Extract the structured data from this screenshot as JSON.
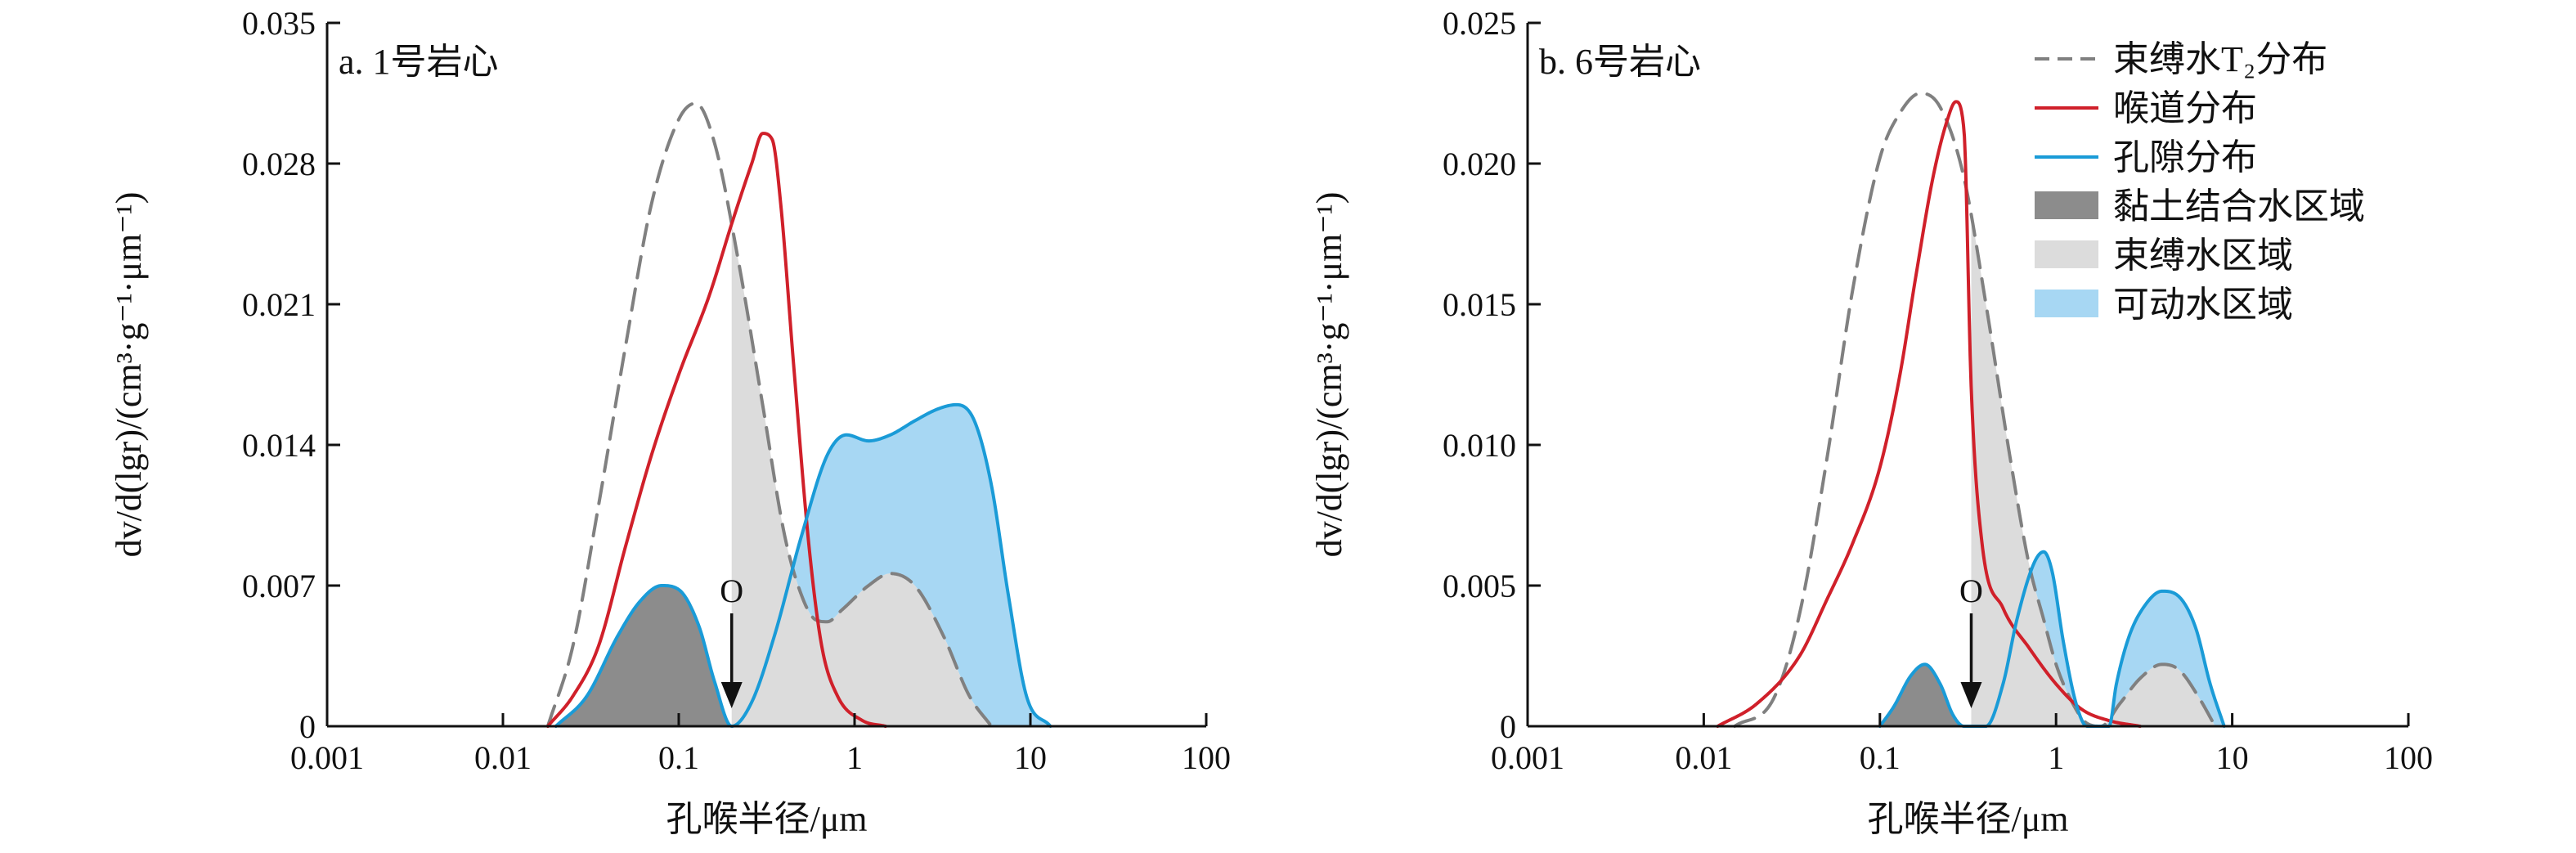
{
  "chart_data": [
    {
      "type": "area",
      "panel_label": "a. 1号岩心",
      "xlabel": "孔喉半径/μm",
      "ylabel": "dv/d(lgr)/(cm³·g⁻¹·μm⁻¹)",
      "x_scale": "log",
      "xlim": [
        0.001,
        100
      ],
      "ylim": [
        0,
        0.035
      ],
      "x_ticks": [
        "0.001",
        "0.01",
        "0.1",
        "1",
        "10",
        "100"
      ],
      "y_ticks": [
        "0",
        "0.007",
        "0.014",
        "0.021",
        "0.028",
        "0.035"
      ],
      "cutoff_marker": {
        "label": "O",
        "x": 0.2
      },
      "series": [
        {
          "name": "束缚水T₂分布",
          "style": "dashed",
          "color": "#808080",
          "points": [
            [
              0.018,
              0
            ],
            [
              0.025,
              0.004
            ],
            [
              0.035,
              0.011
            ],
            [
              0.05,
              0.019
            ],
            [
              0.07,
              0.026
            ],
            [
              0.1,
              0.0302
            ],
            [
              0.125,
              0.031
            ],
            [
              0.16,
              0.029
            ],
            [
              0.22,
              0.023
            ],
            [
              0.3,
              0.016
            ],
            [
              0.4,
              0.0095
            ],
            [
              0.5,
              0.0065
            ],
            [
              0.6,
              0.0053
            ],
            [
              0.7,
              0.0052
            ],
            [
              0.85,
              0.0058
            ],
            [
              1.2,
              0.007
            ],
            [
              1.6,
              0.0076
            ],
            [
              2.2,
              0.007
            ],
            [
              3.2,
              0.0045
            ],
            [
              4.5,
              0.0015
            ],
            [
              6,
              0
            ]
          ]
        },
        {
          "name": "喉道分布",
          "style": "solid",
          "color": "#d0202a",
          "points": [
            [
              0.018,
              0
            ],
            [
              0.025,
              0.0015
            ],
            [
              0.035,
              0.004
            ],
            [
              0.05,
              0.009
            ],
            [
              0.07,
              0.0135
            ],
            [
              0.1,
              0.0175
            ],
            [
              0.15,
              0.0215
            ],
            [
              0.2,
              0.025
            ],
            [
              0.26,
              0.028
            ],
            [
              0.3,
              0.0295
            ],
            [
              0.34,
              0.0292
            ],
            [
              0.38,
              0.026
            ],
            [
              0.45,
              0.018
            ],
            [
              0.55,
              0.009
            ],
            [
              0.65,
              0.004
            ],
            [
              0.8,
              0.0015
            ],
            [
              1.1,
              0.0003
            ],
            [
              1.5,
              0
            ]
          ]
        },
        {
          "name": "孔隙分布",
          "style": "solid",
          "color": "#1a9bd7",
          "points": [
            [
              0.02,
              0
            ],
            [
              0.03,
              0.0015
            ],
            [
              0.045,
              0.0045
            ],
            [
              0.06,
              0.0062
            ],
            [
              0.08,
              0.007
            ],
            [
              0.1,
              0.0068
            ],
            [
              0.13,
              0.005
            ],
            [
              0.16,
              0.0022
            ],
            [
              0.2,
              0
            ],
            [
              0.26,
              0.0012
            ],
            [
              0.35,
              0.0045
            ],
            [
              0.5,
              0.0095
            ],
            [
              0.7,
              0.0135
            ],
            [
              0.9,
              0.0145
            ],
            [
              1.2,
              0.0142
            ],
            [
              1.6,
              0.0145
            ],
            [
              2.2,
              0.0152
            ],
            [
              3,
              0.0158
            ],
            [
              3.8,
              0.016
            ],
            [
              4.8,
              0.0152
            ],
            [
              6,
              0.012
            ],
            [
              7.5,
              0.0065
            ],
            [
              9.5,
              0.0015
            ],
            [
              13,
              0
            ]
          ]
        }
      ],
      "regions": [
        {
          "name": "黏土结合水区域",
          "color": "#8c8c8c",
          "bounds": "孔隙分布, x ≤ 0.2"
        },
        {
          "name": "束缚水区域",
          "color": "#dcdcdc",
          "bounds": "束缚水T₂分布, x ≥ 0.2"
        },
        {
          "name": "可动水区域",
          "color": "#a7d7f3",
          "bounds": "孔隙分布 − 束缚水T₂分布"
        }
      ]
    },
    {
      "type": "area",
      "panel_label": "b. 6号岩心",
      "xlabel": "孔喉半径/μm",
      "ylabel": "dv/d(lgr)/(cm³·g⁻¹·μm⁻¹)",
      "x_scale": "log",
      "xlim": [
        0.001,
        100
      ],
      "ylim": [
        0,
        0.025
      ],
      "x_ticks": [
        "0.001",
        "0.01",
        "0.1",
        "1",
        "10",
        "100"
      ],
      "y_ticks": [
        "0",
        "0.005",
        "0.010",
        "0.015",
        "0.020",
        "0.025"
      ],
      "cutoff_marker": {
        "label": "O",
        "x": 0.33
      },
      "series": [
        {
          "name": "束缚水T₂分布",
          "style": "dashed",
          "color": "#808080",
          "points": [
            [
              0.015,
              0
            ],
            [
              0.025,
              0.001
            ],
            [
              0.035,
              0.004
            ],
            [
              0.05,
              0.0095
            ],
            [
              0.07,
              0.0155
            ],
            [
              0.1,
              0.0202
            ],
            [
              0.13,
              0.0218
            ],
            [
              0.17,
              0.0225
            ],
            [
              0.22,
              0.022
            ],
            [
              0.3,
              0.0195
            ],
            [
              0.4,
              0.015
            ],
            [
              0.55,
              0.0095
            ],
            [
              0.7,
              0.0058
            ],
            [
              0.85,
              0.0038
            ],
            [
              1,
              0.0022
            ],
            [
              1.2,
              0.001
            ],
            [
              1.5,
              0.0001
            ],
            [
              1.8,
              0
            ],
            [
              2.3,
              0.0008
            ],
            [
              3,
              0.0017
            ],
            [
              4,
              0.0022
            ],
            [
              5,
              0.002
            ],
            [
              6.5,
              0.001
            ],
            [
              8,
              0
            ]
          ]
        },
        {
          "name": "喉道分布",
          "style": "solid",
          "color": "#d0202a",
          "points": [
            [
              0.012,
              0
            ],
            [
              0.02,
              0.0008
            ],
            [
              0.035,
              0.0025
            ],
            [
              0.05,
              0.0045
            ],
            [
              0.07,
              0.0065
            ],
            [
              0.1,
              0.0092
            ],
            [
              0.13,
              0.0125
            ],
            [
              0.16,
              0.016
            ],
            [
              0.2,
              0.0195
            ],
            [
              0.24,
              0.0215
            ],
            [
              0.27,
              0.0222
            ],
            [
              0.3,
              0.0212
            ],
            [
              0.33,
              0.012
            ],
            [
              0.38,
              0.0065
            ],
            [
              0.5,
              0.0042
            ],
            [
              0.7,
              0.0028
            ],
            [
              1,
              0.0015
            ],
            [
              1.4,
              0.0006
            ],
            [
              2,
              0.0002
            ],
            [
              3,
              0
            ]
          ]
        },
        {
          "name": "孔隙分布",
          "style": "solid",
          "color": "#1a9bd7",
          "points": [
            [
              0.1,
              0
            ],
            [
              0.12,
              0.0007
            ],
            [
              0.15,
              0.0018
            ],
            [
              0.18,
              0.0022
            ],
            [
              0.22,
              0.0015
            ],
            [
              0.26,
              0.0004
            ],
            [
              0.3,
              0
            ],
            [
              0.4,
              0
            ],
            [
              0.5,
              0.0015
            ],
            [
              0.6,
              0.0038
            ],
            [
              0.75,
              0.0058
            ],
            [
              0.85,
              0.0062
            ],
            [
              0.95,
              0.0055
            ],
            [
              1.1,
              0.003
            ],
            [
              1.3,
              0.0008
            ],
            [
              1.5,
              0
            ],
            [
              2,
              0
            ],
            [
              2.2,
              0.0015
            ],
            [
              2.6,
              0.0032
            ],
            [
              3.2,
              0.0043
            ],
            [
              4,
              0.0048
            ],
            [
              5,
              0.0046
            ],
            [
              6.2,
              0.0035
            ],
            [
              7.5,
              0.0015
            ],
            [
              9,
              0
            ]
          ]
        }
      ],
      "regions": [
        {
          "name": "黏土结合水区域",
          "color": "#8c8c8c",
          "bounds": "孔隙分布, x ≤ 0.33"
        },
        {
          "name": "束缚水区域",
          "color": "#dcdcdc",
          "bounds": "束缚水T₂分布, x ≥ 0.33"
        },
        {
          "name": "可动水区域",
          "color": "#a7d7f3",
          "bounds": "孔隙分布 − 束缚水T₂分布"
        }
      ]
    }
  ],
  "legend": {
    "placement": "top-right of panel b",
    "items": [
      {
        "label": "束缚水T₂分布",
        "kind": "dashed-line",
        "color": "#808080"
      },
      {
        "label": "喉道分布",
        "kind": "line",
        "color": "#d0202a"
      },
      {
        "label": "孔隙分布",
        "kind": "line",
        "color": "#1a9bd7"
      },
      {
        "label": "黏土结合水区域",
        "kind": "patch",
        "color": "#8c8c8c"
      },
      {
        "label": "束缚水区域",
        "kind": "patch",
        "color": "#dcdcdc"
      },
      {
        "label": "可动水区域",
        "kind": "patch",
        "color": "#a7d7f3"
      }
    ]
  }
}
